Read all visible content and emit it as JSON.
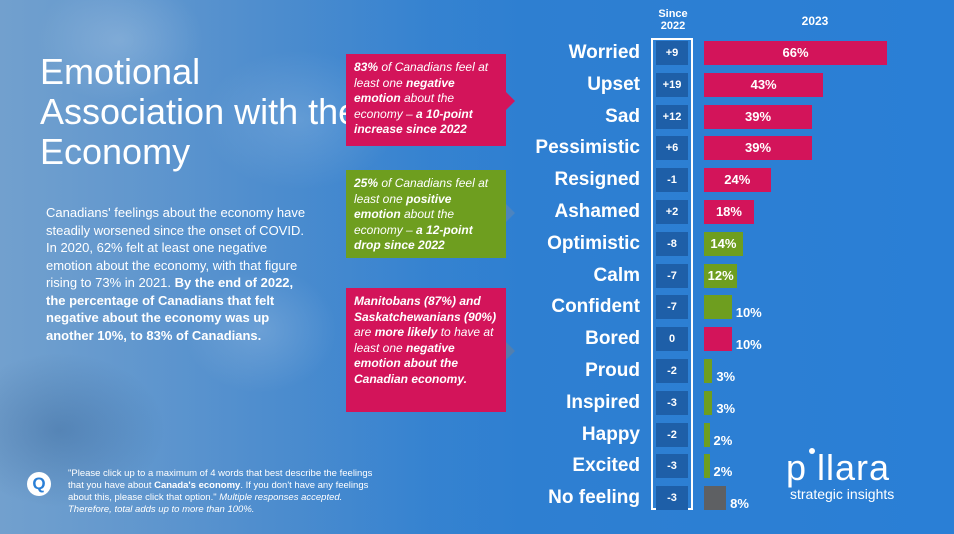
{
  "title": "Emotional Association with the Economy",
  "body": {
    "p1": "Canadians' feelings about the economy have steadily worsened since the onset of COVID. In 2020, 62% felt at least one negative emotion about the economy, with that figure rising to 73% in 2021.",
    "p2": "By the end of 2022, the percentage of Canadians that felt negative about the economy was up another 10%, to 83% of Canadians."
  },
  "callouts": {
    "c1": {
      "a": "83%",
      "b": " of Canadians feel at least one ",
      "c": "negative emotion",
      "d": " about the economy – ",
      "e": "a 10-point increase since 2022"
    },
    "c2": {
      "a": "25%",
      "b": " of Canadians feel at least one ",
      "c": "positive emotion",
      "d": " about the economy – ",
      "e": "a 12-point drop since 2022"
    },
    "c3": {
      "a": "Manitobans (87%) and Saskatchewanians (90%)",
      "b": " are ",
      "c": "more likely",
      "d": " to have at least one ",
      "e": "negative emotion about the Canadian economy."
    }
  },
  "note": {
    "q": "Q",
    "a": "\"Please click up to a maximum of 4 words that best describe the feelings that you have about ",
    "b": "Canada's economy",
    "c": ". If you don't have any feelings about this, please click that option.\" ",
    "d": "Multiple responses accepted. Therefore, total adds up to more than 100%."
  },
  "logo": {
    "text_a": "p",
    "text_b": "llara",
    "tagline": "strategic insights"
  },
  "colors": {
    "negative": "#d3145a",
    "positive": "#6e9e1f",
    "neutral": "#5e6063",
    "change_box": "#1e5fa8"
  },
  "chart_data": {
    "type": "bar",
    "orientation": "horizontal",
    "header_change": "Since 2022",
    "header_value": "2023",
    "categories": [
      "Worried",
      "Upset",
      "Sad",
      "Pessimistic",
      "Resigned",
      "Ashamed",
      "Optimistic",
      "Calm",
      "Confident",
      "Bored",
      "Proud",
      "Inspired",
      "Happy",
      "Excited",
      "No feeling"
    ],
    "values": [
      66,
      43,
      39,
      39,
      24,
      18,
      14,
      12,
      10,
      10,
      3,
      3,
      2,
      2,
      8
    ],
    "value_labels": [
      "66%",
      "43%",
      "39%",
      "39%",
      "24%",
      "18%",
      "14%",
      "12%",
      "10%",
      "10%",
      "3%",
      "3%",
      "2%",
      "2%",
      "8%"
    ],
    "change_since_2022": [
      "+9",
      "+19",
      "+12",
      "+6",
      "-1",
      "+2",
      "-8",
      "-7",
      "-7",
      "0",
      "-2",
      "-3",
      "-2",
      "-3",
      "-3"
    ],
    "sentiment": [
      "negative",
      "negative",
      "negative",
      "negative",
      "negative",
      "negative",
      "positive",
      "positive",
      "positive",
      "negative",
      "positive",
      "positive",
      "positive",
      "positive",
      "neutral"
    ],
    "xlim": [
      0,
      66
    ]
  }
}
